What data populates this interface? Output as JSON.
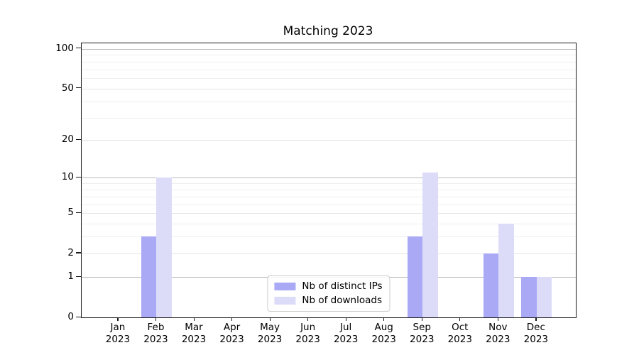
{
  "chart_data": {
    "type": "bar",
    "title": "Matching 2023",
    "categories": [
      "Jan 2023",
      "Feb 2023",
      "Mar 2023",
      "Apr 2023",
      "May 2023",
      "Jun 2023",
      "Jul 2023",
      "Aug 2023",
      "Sep 2023",
      "Oct 2023",
      "Nov 2023",
      "Dec 2023"
    ],
    "series": [
      {
        "name": "Nb of distinct IPs",
        "color": "#a9a9f6",
        "values": [
          0,
          3,
          0,
          0,
          0,
          0,
          0,
          0,
          3,
          0,
          2,
          1
        ]
      },
      {
        "name": "Nb of downloads",
        "color": "#dcdcf9",
        "values": [
          0,
          10,
          0,
          0,
          0,
          0,
          0,
          0,
          11,
          0,
          4,
          1
        ]
      }
    ],
    "xlabel": "",
    "ylabel": "",
    "y_scale": "log1p",
    "y_ticks": [
      0,
      1,
      2,
      5,
      10,
      20,
      50,
      100
    ],
    "y_minor_ticks": [
      3,
      4,
      6,
      7,
      8,
      9,
      30,
      40,
      60,
      70,
      80,
      90
    ],
    "ylim": [
      0,
      110
    ],
    "grid": true,
    "legend_position": "lower center",
    "colors": {
      "axis": "#1a1a1a",
      "grid_major": "#b9b9b9",
      "grid_mid": "#e4e4e4",
      "grid_minor": "#efefef"
    }
  }
}
